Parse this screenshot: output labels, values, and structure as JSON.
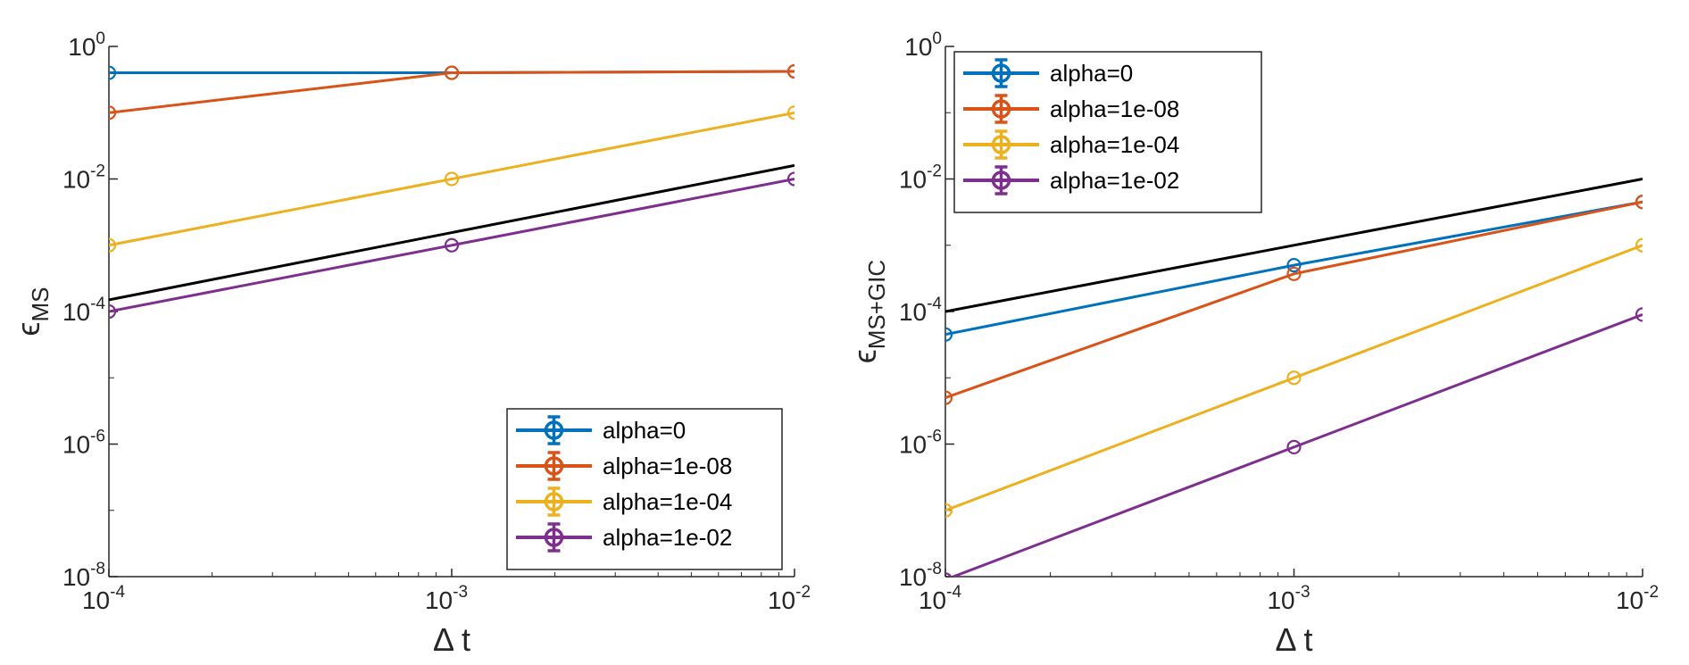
{
  "chart_data": [
    {
      "type": "line",
      "panel": "left",
      "xscale": "log",
      "yscale": "log",
      "xlim": [
        0.0001,
        0.01
      ],
      "ylim": [
        1e-08,
        1
      ],
      "xlabel_main": "Δ t",
      "ylabel_base": "ϵ",
      "ylabel_sub": "MS",
      "x_ticks": [
        {
          "value": 0.0001,
          "base": "10",
          "exp": "-4"
        },
        {
          "value": 0.001,
          "base": "10",
          "exp": "-3"
        },
        {
          "value": 0.01,
          "base": "10",
          "exp": "-2"
        }
      ],
      "y_ticks": [
        {
          "value": 1e-08,
          "base": "10",
          "exp": "-8"
        },
        {
          "value": 1e-06,
          "base": "10",
          "exp": "-6"
        },
        {
          "value": 0.0001,
          "base": "10",
          "exp": "-4"
        },
        {
          "value": 0.01,
          "base": "10",
          "exp": "-2"
        },
        {
          "value": 1,
          "base": "10",
          "exp": "0"
        }
      ],
      "legend_position": "bottom-right",
      "x": [
        0.0001,
        0.001,
        0.01
      ],
      "series": [
        {
          "name": "alpha=0",
          "color": "#0072BD",
          "values": [
            0.4,
            0.4,
            0.42
          ]
        },
        {
          "name": "alpha=1e-08",
          "color": "#D95319",
          "values": [
            0.1,
            0.4,
            0.42
          ]
        },
        {
          "name": "alpha=1e-04",
          "color": "#EDB120",
          "values": [
            0.001,
            0.01,
            0.1
          ]
        },
        {
          "name": "alpha=1e-02",
          "color": "#7E2F8E",
          "values": [
            0.0001,
            0.001,
            0.01
          ]
        }
      ],
      "reference_line": {
        "color": "#000000",
        "x": [
          0.0001,
          0.01
        ],
        "values": [
          0.00015,
          0.016
        ]
      }
    },
    {
      "type": "line",
      "panel": "right",
      "xscale": "log",
      "yscale": "log",
      "xlim": [
        0.0001,
        0.01
      ],
      "ylim": [
        1e-08,
        1
      ],
      "xlabel_main": "Δ t",
      "ylabel_base": "ϵ",
      "ylabel_sub": "MS+GIC",
      "x_ticks": [
        {
          "value": 0.0001,
          "base": "10",
          "exp": "-4"
        },
        {
          "value": 0.001,
          "base": "10",
          "exp": "-3"
        },
        {
          "value": 0.01,
          "base": "10",
          "exp": "-2"
        }
      ],
      "y_ticks": [
        {
          "value": 1e-08,
          "base": "10",
          "exp": "-8"
        },
        {
          "value": 1e-06,
          "base": "10",
          "exp": "-6"
        },
        {
          "value": 0.0001,
          "base": "10",
          "exp": "-4"
        },
        {
          "value": 0.01,
          "base": "10",
          "exp": "-2"
        },
        {
          "value": 1,
          "base": "10",
          "exp": "0"
        }
      ],
      "legend_position": "top-left",
      "x": [
        0.0001,
        0.001,
        0.01
      ],
      "series": [
        {
          "name": "alpha=0",
          "color": "#0072BD",
          "values": [
            4.5e-05,
            0.0005,
            0.0045
          ]
        },
        {
          "name": "alpha=1e-08",
          "color": "#D95319",
          "values": [
            5e-06,
            0.00037,
            0.0045
          ]
        },
        {
          "name": "alpha=1e-04",
          "color": "#EDB120",
          "values": [
            1e-07,
            1e-05,
            0.001
          ]
        },
        {
          "name": "alpha=1e-02",
          "color": "#7E2F8E",
          "values": [
            9e-09,
            9e-07,
            9e-05
          ]
        }
      ],
      "reference_line": {
        "color": "#000000",
        "x": [
          0.0001,
          0.01
        ],
        "values": [
          0.0001,
          0.01
        ]
      }
    }
  ]
}
